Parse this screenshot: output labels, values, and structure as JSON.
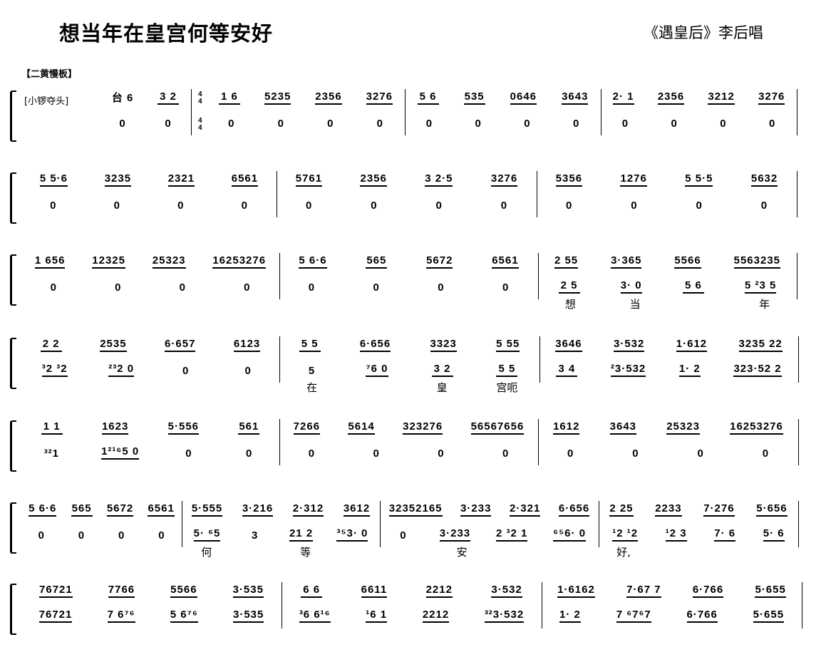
{
  "title": "想当年在皇宫何等安好",
  "subtitle": "《遇皇后》李后唱",
  "tempo": "【二黄慢板】",
  "systems": [
    {
      "label": "[小锣夺头]",
      "measures": [
        {
          "top": [
            "台 6",
            "3 2"
          ],
          "bottom": [
            "0",
            "0"
          ]
        },
        {
          "time": [
            "4",
            "4"
          ],
          "top": [
            "1 6",
            "5235",
            "2356",
            "3276"
          ],
          "bottom": [
            "0",
            "0",
            "0",
            "0"
          ]
        },
        {
          "top": [
            "5 6",
            "535",
            "0646",
            "3643"
          ],
          "bottom": [
            "0",
            "0",
            "0",
            "0"
          ]
        },
        {
          "top": [
            "2· 1",
            "2356",
            "3212",
            "3276"
          ],
          "bottom": [
            "0",
            "0",
            "0",
            "0"
          ]
        }
      ]
    },
    {
      "measures": [
        {
          "top": [
            "5 5·6",
            "3235",
            "2321",
            "6561"
          ],
          "bottom": [
            "0",
            "0",
            "0",
            "0"
          ]
        },
        {
          "top": [
            "5761",
            "2356",
            "3 2·5",
            "3276"
          ],
          "bottom": [
            "0",
            "0",
            "0",
            "0"
          ]
        },
        {
          "top": [
            "5356",
            "1276",
            "5 5·5",
            "5632"
          ],
          "bottom": [
            "0",
            "0",
            "0",
            "0"
          ]
        }
      ]
    },
    {
      "measures": [
        {
          "top": [
            "1 656",
            "12325",
            "25323",
            "16253276"
          ],
          "bottom": [
            "0",
            "0",
            "0",
            "0"
          ]
        },
        {
          "top": [
            "5 6·6",
            "565",
            "5672",
            "6561"
          ],
          "bottom": [
            "0",
            "0",
            "0",
            "0"
          ]
        },
        {
          "top": [
            "2 55",
            "3·365",
            "5566",
            "5563235"
          ],
          "bottom": [
            "2 5",
            "3· 0",
            "5 6",
            "5 ²3 5"
          ],
          "lyrics": [
            "想",
            "当",
            "",
            "年"
          ]
        }
      ]
    },
    {
      "measures": [
        {
          "top": [
            "2 2",
            "2535",
            "6·657",
            "6123"
          ],
          "bottom": [
            "³2 ³2",
            "²³2 0",
            "0",
            "0"
          ]
        },
        {
          "top": [
            "5 5",
            "6·656",
            "3323",
            "5 55"
          ],
          "bottom": [
            "5",
            "⁷6 0",
            "3 2",
            "5 5"
          ],
          "lyrics": [
            "在",
            "",
            "皇",
            "宫呃"
          ]
        },
        {
          "top": [
            "3646",
            "3·532",
            "1·612",
            "3235 22"
          ],
          "bottom": [
            "3 4",
            "²3·532",
            "1· 2",
            "323·52 2"
          ]
        }
      ]
    },
    {
      "measures": [
        {
          "top": [
            "1 1",
            "1623",
            "5·556",
            "561"
          ],
          "bottom": [
            "³²1",
            "1²¹⁶5 0",
            "0",
            "0"
          ]
        },
        {
          "top": [
            "7266",
            "5614",
            "323276",
            "56567656"
          ],
          "bottom": [
            "0",
            "0",
            "0",
            "0"
          ]
        },
        {
          "top": [
            "1612",
            "3643",
            "25323",
            "16253276"
          ],
          "bottom": [
            "0",
            "0",
            "0",
            "0"
          ]
        }
      ]
    },
    {
      "measures": [
        {
          "top": [
            "5 6·6",
            "565",
            "5672",
            "6561"
          ],
          "bottom": [
            "0",
            "0",
            "0",
            "0"
          ]
        },
        {
          "top": [
            "5·555",
            "3·216",
            "2·312",
            "3612"
          ],
          "bottom": [
            "5· ⁶5",
            "3",
            "21 2",
            "³⁵3· 0"
          ],
          "lyrics": [
            "何",
            "",
            "等",
            ""
          ]
        },
        {
          "top": [
            "32352165",
            "3·233",
            "2·321",
            "6·656"
          ],
          "bottom": [
            "0",
            "3·233",
            "2 ³2 1",
            "⁶⁵6· 0"
          ],
          "lyrics": [
            "",
            "安",
            "",
            ""
          ]
        },
        {
          "top": [
            "2 25",
            "2233",
            "7·276",
            "5·656"
          ],
          "bottom": [
            "¹2 ¹2",
            "¹2 3",
            "7· 6",
            "5· 6"
          ],
          "lyrics": [
            "好,",
            "",
            "",
            ""
          ]
        }
      ]
    },
    {
      "measures": [
        {
          "top": [
            "76721",
            "7766",
            "5566",
            "3·535"
          ],
          "bottom": [
            "76721",
            "7 6⁷⁶",
            "5 6⁷⁶",
            "3·535"
          ]
        },
        {
          "top": [
            "6 6",
            "6611",
            "2212",
            "3·532"
          ],
          "bottom": [
            "³6 6¹⁶",
            "¹6 1",
            "2212",
            "³²3·532"
          ]
        },
        {
          "top": [
            "1·6162",
            "7·67 7",
            "6·766",
            "5·655"
          ],
          "bottom": [
            "1· 2",
            "7 ⁶7⁶7",
            "6·766",
            "5·655"
          ]
        }
      ]
    }
  ]
}
